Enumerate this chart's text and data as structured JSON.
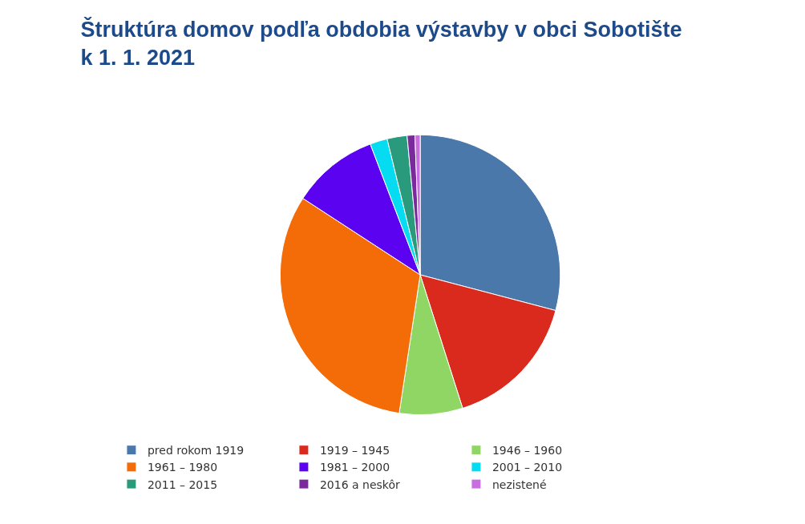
{
  "chart_data": {
    "type": "pie",
    "title": "Štruktúra domov podľa obdobia výstavby v obci Sobotište k 1. 1. 2021",
    "categories": [
      "pred rokom 1919",
      "1919 – 1945",
      "1946 – 1960",
      "1961 – 1980",
      "1981 – 2000",
      "2001 – 2010",
      "2011 – 2015",
      "2016 a neskôr",
      "nezistené"
    ],
    "values": [
      29.1,
      16.0,
      7.3,
      31.8,
      10.0,
      2.0,
      2.3,
      0.9,
      0.6
    ],
    "colors": [
      "#4a78aa",
      "#da2a1e",
      "#8fd664",
      "#f36c08",
      "#5b02f0",
      "#05dcf2",
      "#2a9a7c",
      "#7a2a9c",
      "#c86ee0"
    ],
    "legend": "bottom"
  }
}
